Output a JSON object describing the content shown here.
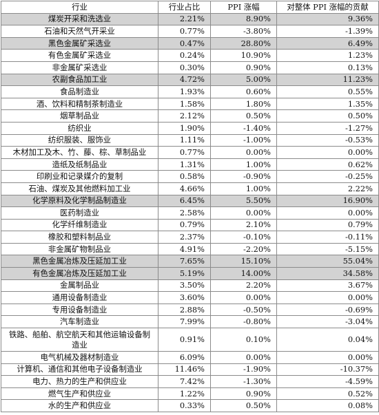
{
  "headers": [
    "行业",
    "行业占比",
    "PPI 涨幅",
    "对整体 PPI 涨幅的贡献"
  ],
  "highlight_color": "#d3d3d3",
  "rows": [
    {
      "name": "煤炭开采和洗选业",
      "share": "2.21%",
      "ppi": "8.90%",
      "contrib": "9.36%",
      "highlight": true
    },
    {
      "name": "石油和天然气开采业",
      "share": "0.77%",
      "ppi": "-3.80%",
      "contrib": "-1.39%",
      "highlight": false
    },
    {
      "name": "黑色金属矿采选业",
      "share": "0.47%",
      "ppi": "28.80%",
      "contrib": "6.49%",
      "highlight": true
    },
    {
      "name": "有色金属矿采选业",
      "share": "0.24%",
      "ppi": "10.90%",
      "contrib": "1.23%",
      "highlight": false
    },
    {
      "name": "非金属矿采选业",
      "share": "0.30%",
      "ppi": "0.90%",
      "contrib": "0.13%",
      "highlight": false
    },
    {
      "name": "农副食品加工业",
      "share": "4.72%",
      "ppi": "5.00%",
      "contrib": "11.23%",
      "highlight": true
    },
    {
      "name": "食品制造业",
      "share": "1.93%",
      "ppi": "0.60%",
      "contrib": "0.55%",
      "highlight": false
    },
    {
      "name": "酒、饮料和精制茶制造业",
      "share": "1.58%",
      "ppi": "1.80%",
      "contrib": "1.35%",
      "highlight": false
    },
    {
      "name": "烟草制品业",
      "share": "2.12%",
      "ppi": "0.50%",
      "contrib": "0.50%",
      "highlight": false
    },
    {
      "name": "纺织业",
      "share": "1.90%",
      "ppi": "-1.40%",
      "contrib": "-1.27%",
      "highlight": false
    },
    {
      "name": "纺织服装、服饰业",
      "share": "1.11%",
      "ppi": "-1.00%",
      "contrib": "-0.53%",
      "highlight": false
    },
    {
      "name": "木材加工及木、竹、藤、棕、草制品业",
      "share": "0.77%",
      "ppi": "0.00%",
      "contrib": "0.00%",
      "highlight": false
    },
    {
      "name": "造纸及纸制品业",
      "share": "1.31%",
      "ppi": "1.00%",
      "contrib": "0.62%",
      "highlight": false
    },
    {
      "name": "印刷业和记录媒介的复制",
      "share": "0.58%",
      "ppi": "-0.90%",
      "contrib": "-0.25%",
      "highlight": false
    },
    {
      "name": "石油、煤炭及其他燃料加工业",
      "share": "4.66%",
      "ppi": "1.00%",
      "contrib": "2.22%",
      "highlight": false
    },
    {
      "name": "化学原料及化学制品制造业",
      "share": "6.45%",
      "ppi": "5.50%",
      "contrib": "16.90%",
      "highlight": true
    },
    {
      "name": "医药制造业",
      "share": "2.58%",
      "ppi": "0.00%",
      "contrib": "0.00%",
      "highlight": false
    },
    {
      "name": "化学纤维制造业",
      "share": "0.79%",
      "ppi": "2.10%",
      "contrib": "0.79%",
      "highlight": false
    },
    {
      "name": "橡胶和塑料制品业",
      "share": "2.37%",
      "ppi": "-0.10%",
      "contrib": "-0.11%",
      "highlight": false
    },
    {
      "name": "非金属矿物制品业",
      "share": "4.91%",
      "ppi": "-2.20%",
      "contrib": "-5.15%",
      "highlight": false
    },
    {
      "name": "黑色金属冶炼及压延加工业",
      "share": "7.65%",
      "ppi": "15.10%",
      "contrib": "55.04%",
      "highlight": true
    },
    {
      "name": "有色金属冶炼及压延加工业",
      "share": "5.19%",
      "ppi": "14.00%",
      "contrib": "34.58%",
      "highlight": true
    },
    {
      "name": "金属制品业",
      "share": "3.50%",
      "ppi": "2.20%",
      "contrib": "3.67%",
      "highlight": false
    },
    {
      "name": "通用设备制造业",
      "share": "3.60%",
      "ppi": "0.00%",
      "contrib": "0.00%",
      "highlight": false
    },
    {
      "name": "专用设备制造业",
      "share": "2.88%",
      "ppi": "-0.50%",
      "contrib": "-0.69%",
      "highlight": false
    },
    {
      "name": "汽车制造业",
      "share": "7.99%",
      "ppi": "-0.80%",
      "contrib": "-3.04%",
      "highlight": false
    },
    {
      "name": "铁路、船舶、航空航天和其他运输设备制造业",
      "share": "0.91%",
      "ppi": "0.10%",
      "contrib": "0.04%",
      "highlight": false,
      "tall": true
    },
    {
      "name": "电气机械及器材制造业",
      "share": "6.09%",
      "ppi": "0.00%",
      "contrib": "0.00%",
      "highlight": false
    },
    {
      "name": "计算机、通信和其他电子设备制造业",
      "share": "11.46%",
      "ppi": "-1.90%",
      "contrib": "-10.37%",
      "highlight": false
    },
    {
      "name": "电力、热力的生产和供应业",
      "share": "7.42%",
      "ppi": "-1.30%",
      "contrib": "-4.59%",
      "highlight": false
    },
    {
      "name": "燃气生产和供应业",
      "share": "1.22%",
      "ppi": "0.90%",
      "contrib": "0.52%",
      "highlight": false
    },
    {
      "name": "水的生产和供应业",
      "share": "0.33%",
      "ppi": "0.50%",
      "contrib": "0.08%",
      "highlight": false
    }
  ]
}
